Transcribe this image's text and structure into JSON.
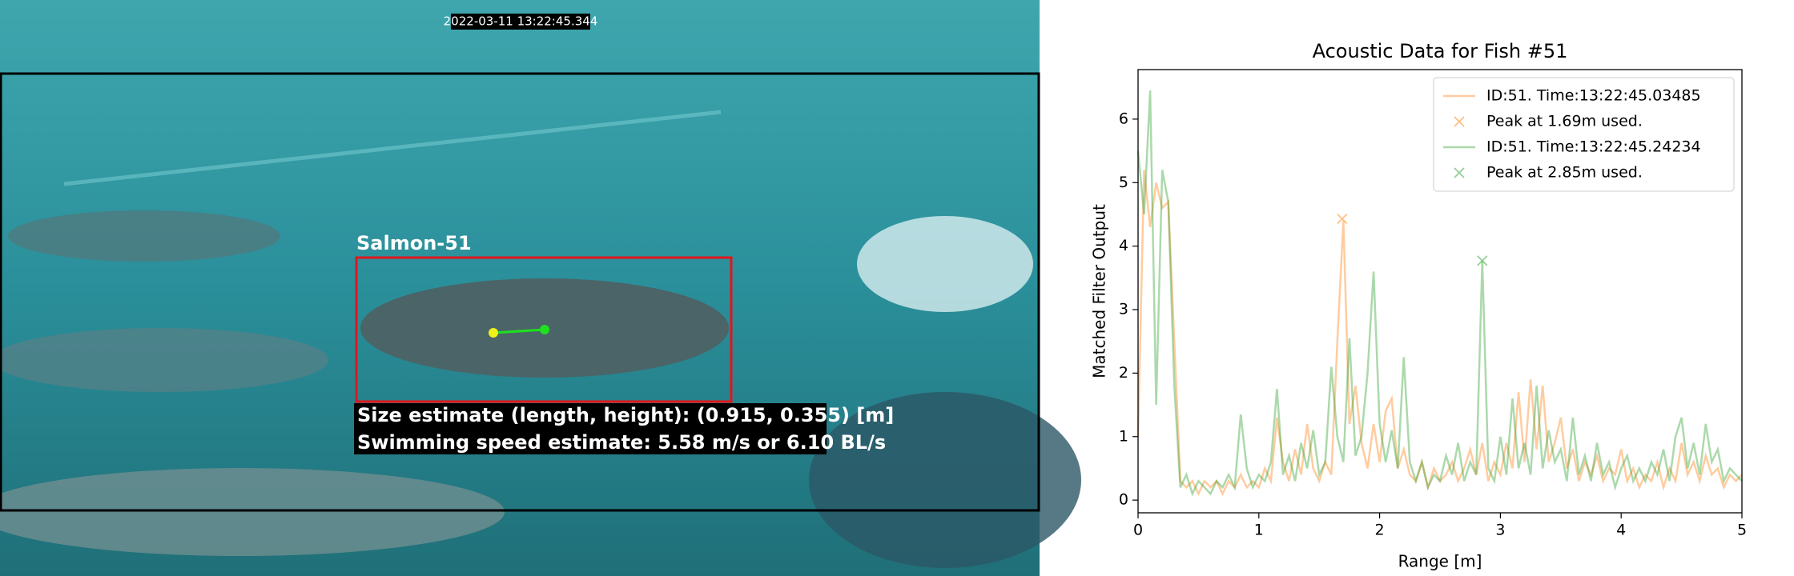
{
  "video_frame": {
    "timestamp": "2022-03-11 13:22:45.344",
    "label": "Salmon-51",
    "size_text": "Size estimate (length, height): (0.915, 0.355) [m]",
    "speed_text": "Swimming speed estimate: 5.58 m/s or 6.10 BL/s"
  },
  "chart_data": {
    "type": "line",
    "title": "Acoustic Data for Fish #51",
    "x_label": "Range [m]",
    "y_label": "Matched Filter Output",
    "xlim": [
      0,
      5
    ],
    "ylim": [
      -0.2,
      6.78
    ],
    "xticks": [
      0,
      1,
      2,
      3,
      4,
      5
    ],
    "yticks": [
      0,
      1,
      2,
      3,
      4,
      5,
      6
    ],
    "legend": "upper right",
    "x": [
      0,
      0.05,
      0.1,
      0.15,
      0.2,
      0.25,
      0.3,
      0.35,
      0.4,
      0.45,
      0.5,
      0.55,
      0.6,
      0.65,
      0.7,
      0.75,
      0.8,
      0.85,
      0.9,
      0.95,
      1,
      1.05,
      1.1,
      1.15,
      1.2,
      1.25,
      1.3,
      1.35,
      1.4,
      1.45,
      1.5,
      1.55,
      1.6,
      1.65,
      1.7,
      1.75,
      1.8,
      1.85,
      1.9,
      1.95,
      2,
      2.05,
      2.1,
      2.15,
      2.2,
      2.25,
      2.3,
      2.35,
      2.4,
      2.45,
      2.5,
      2.55,
      2.6,
      2.65,
      2.7,
      2.75,
      2.8,
      2.85,
      2.9,
      2.95,
      3,
      3.05,
      3.1,
      3.15,
      3.2,
      3.25,
      3.3,
      3.35,
      3.4,
      3.45,
      3.5,
      3.55,
      3.6,
      3.65,
      3.7,
      3.75,
      3.8,
      3.85,
      3.9,
      3.95,
      4,
      4.05,
      4.1,
      4.15,
      4.2,
      4.25,
      4.3,
      4.35,
      4.4,
      4.45,
      4.5,
      4.55,
      4.6,
      4.65,
      4.7,
      4.75,
      4.8,
      4.85,
      4.9,
      4.95,
      5
    ],
    "series": [
      {
        "name": "ID:51. Time:13:22:45.03485",
        "color": "#ff7f0e",
        "values": [
          1.0,
          5.2,
          4.3,
          5.0,
          4.6,
          4.7,
          2.5,
          0.3,
          0.2,
          0.3,
          0.1,
          0.3,
          0.2,
          0.3,
          0.1,
          0.3,
          0.2,
          0.4,
          0.2,
          0.3,
          0.2,
          0.5,
          0.3,
          1.3,
          0.6,
          0.3,
          0.8,
          0.4,
          1.2,
          0.5,
          0.3,
          0.6,
          0.4,
          2.5,
          4.4,
          1.2,
          1.8,
          0.9,
          0.5,
          1.2,
          0.6,
          1.4,
          1.6,
          0.5,
          0.8,
          0.4,
          0.3,
          0.6,
          0.2,
          0.5,
          0.3,
          0.4,
          0.6,
          0.3,
          0.5,
          0.8,
          0.4,
          0.9,
          0.3,
          0.6,
          0.4,
          0.9,
          0.5,
          1.7,
          0.6,
          1.9,
          0.8,
          1.8,
          0.6,
          0.9,
          1.3,
          0.5,
          0.8,
          0.3,
          0.6,
          0.4,
          0.7,
          0.3,
          0.5,
          0.4,
          0.8,
          0.3,
          0.5,
          0.2,
          0.4,
          0.3,
          0.6,
          0.2,
          0.5,
          0.3,
          0.9,
          0.4,
          0.6,
          0.3,
          0.7,
          0.4,
          0.5,
          0.2,
          0.4,
          0.3,
          0.4
        ]
      },
      {
        "name": "ID:51. Time:13:22:45.24234",
        "color": "#2ca02c",
        "values": [
          5.5,
          4.5,
          6.45,
          1.5,
          5.2,
          4.7,
          1.8,
          0.2,
          0.4,
          0.1,
          0.3,
          0.2,
          0.1,
          0.3,
          0.2,
          0.4,
          0.2,
          1.35,
          0.5,
          0.2,
          0.4,
          0.3,
          0.6,
          1.75,
          0.4,
          0.7,
          0.3,
          0.9,
          0.5,
          1.1,
          0.4,
          0.6,
          2.1,
          1.0,
          0.6,
          2.55,
          0.7,
          1.0,
          2.0,
          3.6,
          1.2,
          0.6,
          1.1,
          0.5,
          2.25,
          0.6,
          0.3,
          0.6,
          0.2,
          0.4,
          0.3,
          0.7,
          0.4,
          0.9,
          0.3,
          0.6,
          0.4,
          3.77,
          0.5,
          0.3,
          1.0,
          0.4,
          1.6,
          0.5,
          0.9,
          0.4,
          1.8,
          0.5,
          1.1,
          0.6,
          0.8,
          0.3,
          1.3,
          0.4,
          0.7,
          0.3,
          0.9,
          0.4,
          0.6,
          0.2,
          0.5,
          0.7,
          0.3,
          0.5,
          0.3,
          0.6,
          0.4,
          0.8,
          0.3,
          1.0,
          1.3,
          0.5,
          0.9,
          0.4,
          1.2,
          0.6,
          0.8,
          0.3,
          0.5,
          0.4,
          0.3
        ]
      }
    ],
    "peaks": [
      {
        "name": "Peak at 1.69m used.",
        "color": "#ff7f0e",
        "x": 1.69,
        "y": 4.43
      },
      {
        "name": "Peak at 2.85m used.",
        "color": "#2ca02c",
        "x": 2.85,
        "y": 3.77
      }
    ]
  }
}
